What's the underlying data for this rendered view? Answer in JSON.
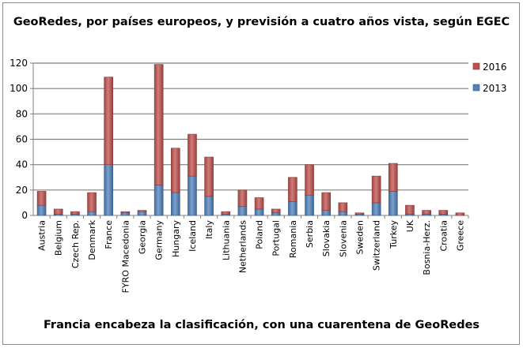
{
  "chart_data": {
    "type": "bar",
    "stacked": true,
    "title": "GeoRedes, por países europeos, y previsión a cuatro años vista, según EGEC",
    "caption": "Francia encabeza la clasificación, con una cuarentena de GeoRedes",
    "ylim": [
      0,
      120
    ],
    "yticks": [
      0,
      20,
      40,
      60,
      80,
      100,
      120
    ],
    "grid": true,
    "legend_position": "right",
    "categories": [
      "Austria",
      "Belgium",
      "Czech Rep.",
      "Denmark",
      "France",
      "FYRO Macedonia",
      "Georgia",
      "Germany",
      "Hungary",
      "Iceland",
      "Italy",
      "Lithuania",
      "Netherlands",
      "Poland",
      "Portugal",
      "Romania",
      "Serbia",
      "Slovakia",
      "Slovenia",
      "Sweden",
      "Switzerland",
      "Turkey",
      "UK",
      "Bosnia-Herz.",
      "Croatia",
      "Greece"
    ],
    "series": [
      {
        "name": "2013",
        "color": "#4f81bd",
        "values": [
          8,
          1,
          1,
          3,
          40,
          2,
          3,
          24,
          18,
          31,
          15,
          1,
          7,
          5,
          2,
          11,
          16,
          4,
          3,
          1,
          10,
          19,
          1,
          1,
          1,
          0
        ]
      },
      {
        "name": "2016",
        "color": "#c0504d",
        "values": [
          11,
          4,
          2,
          15,
          69,
          1,
          1,
          95,
          35,
          33,
          31,
          2,
          13,
          9,
          3,
          19,
          24,
          14,
          7,
          1,
          21,
          22,
          7,
          3,
          3,
          2
        ]
      }
    ],
    "legend_order": [
      "2016",
      "2013"
    ]
  }
}
